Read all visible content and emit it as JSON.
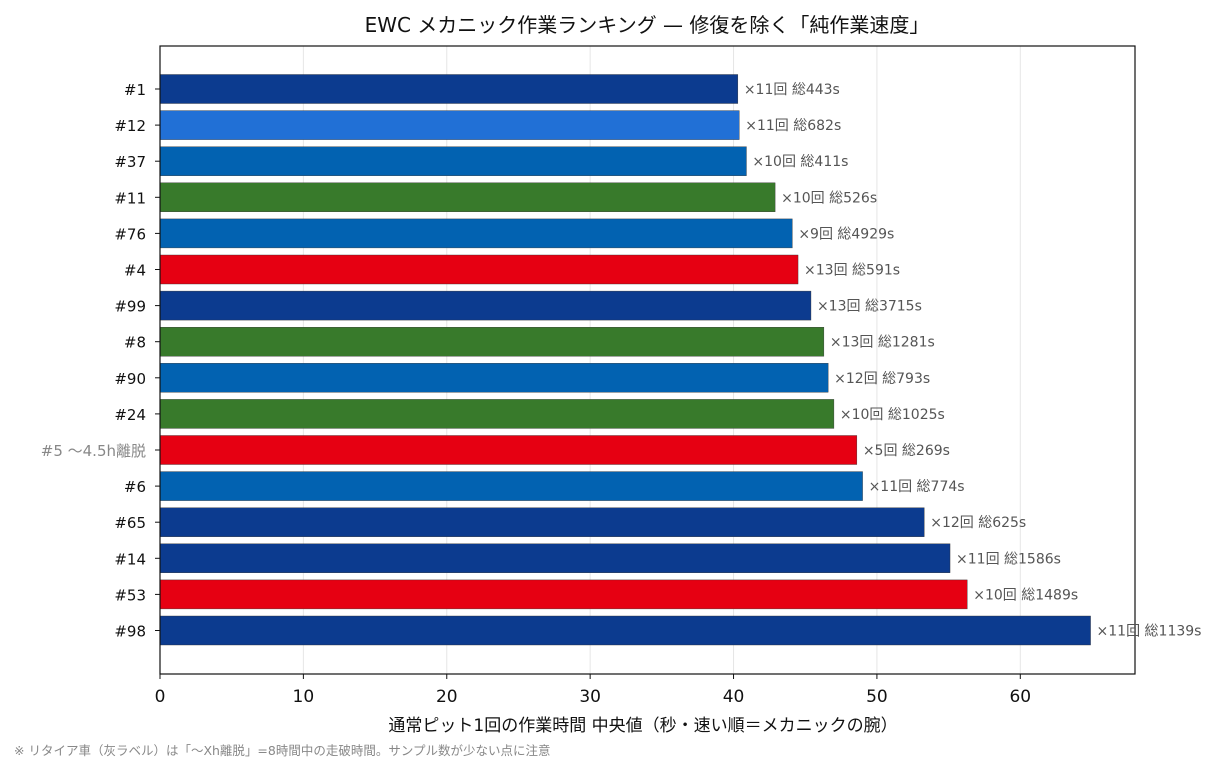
{
  "chart_data": {
    "type": "bar",
    "orientation": "horizontal",
    "title": "EWC メカニック作業ランキング — 修復を除く「純作業速度」",
    "xlabel": "通常ピット1回の作業時間 中央値（秒・速い順＝メカニックの腕）",
    "ylabel": "",
    "xlim": [
      0,
      68
    ],
    "xticks": [
      0,
      10,
      20,
      30,
      40,
      50,
      60
    ],
    "grid": "x",
    "categories": [
      "#1",
      "#12",
      "#37",
      "#11",
      "#76",
      "#4",
      "#99",
      "#8",
      "#90",
      "#24",
      "#5 〜4.5h離脱",
      "#6",
      "#65",
      "#14",
      "#53",
      "#98"
    ],
    "values": [
      40.3,
      40.4,
      40.9,
      42.9,
      44.1,
      44.5,
      45.4,
      46.3,
      46.6,
      47.0,
      48.6,
      49.0,
      53.3,
      55.1,
      56.3,
      64.9
    ],
    "data_labels": [
      "×11回 総443s",
      "×11回 総682s",
      "×10回 総411s",
      "×10回 総526s",
      "×9回 総4929s",
      "×13回 総591s",
      "×13回 総3715s",
      "×13回 総1281s",
      "×12回 総793s",
      "×10回 総1025s",
      "×5回 総269s",
      "×11回 総774s",
      "×12回 総625s",
      "×11回 総1586s",
      "×10回 総1489s",
      "×11回 総1139s"
    ],
    "colors": [
      "#0c3b8f",
      "#2170d6",
      "#0262b1",
      "#387a2b",
      "#0262b1",
      "#e60012",
      "#0c3b8f",
      "#387a2b",
      "#0262b1",
      "#387a2b",
      "#e60012",
      "#0262b1",
      "#0c3b8f",
      "#0c3b8f",
      "#e60012",
      "#0c3b8f"
    ],
    "retired": [
      false,
      false,
      false,
      false,
      false,
      false,
      false,
      false,
      false,
      false,
      true,
      false,
      false,
      false,
      false,
      false
    ],
    "retired_label_color": "#888888"
  },
  "footnote": "※ リタイア車（灰ラベル）は「〜Xh離脱」=8時間中の走破時間。サンプル数が少ない点に注意"
}
